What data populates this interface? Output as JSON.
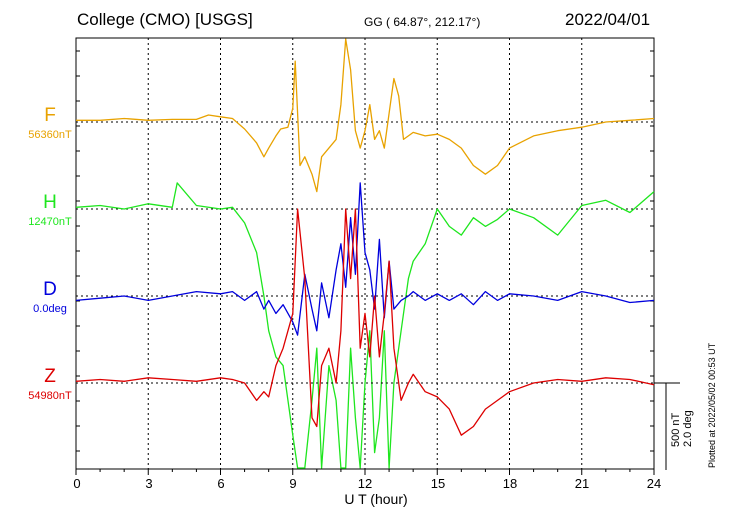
{
  "header": {
    "station": "College (CMO)  [USGS]",
    "coords": "GG ( 64.87°, 212.17°)",
    "date": "2022/04/01"
  },
  "side_note": "Plotted at 2022/05/02 00:53 UT",
  "scale_bar": {
    "line1": "500 nT",
    "line2": "2.0 deg"
  },
  "colors": {
    "F": "#e8a200",
    "H": "#1ee61e",
    "D": "#0000dd",
    "Z": "#dd0000"
  },
  "chart_data": {
    "type": "line",
    "xlabel": "U T (hour)",
    "xlim": [
      0,
      24
    ],
    "x_ticks": [
      0,
      3,
      6,
      9,
      12,
      15,
      18,
      21,
      24
    ],
    "x_tick_labels": [
      "0",
      "3",
      "6",
      "9",
      "12",
      "15",
      "18",
      "21",
      "24"
    ],
    "y_unit_per_division": "500 nT / 2.0 deg",
    "series": [
      {
        "name": "F",
        "baseline_label": "56360nT",
        "color": "#e8a200",
        "x": [
          0,
          1,
          2,
          3,
          4,
          5,
          5.5,
          6,
          6.5,
          7,
          7.5,
          7.8,
          8,
          8.3,
          8.5,
          8.8,
          9,
          9.1,
          9.3,
          9.5,
          9.8,
          10,
          10.2,
          10.5,
          10.8,
          11,
          11.2,
          11.4,
          11.6,
          11.8,
          12,
          12.2,
          12.4,
          12.6,
          12.8,
          13,
          13.2,
          13.4,
          13.6,
          13.8,
          14,
          14.5,
          15,
          15.5,
          16,
          16.5,
          17,
          17.5,
          18,
          19,
          20,
          21,
          22,
          23,
          24
        ],
        "y": [
          10,
          10,
          20,
          10,
          15,
          15,
          40,
          30,
          20,
          -40,
          -120,
          -200,
          -150,
          -80,
          -40,
          -30,
          80,
          350,
          -250,
          -200,
          -300,
          -400,
          -200,
          -150,
          -100,
          100,
          550,
          300,
          -50,
          -150,
          -50,
          100,
          -100,
          -50,
          -150,
          50,
          250,
          150,
          -100,
          -80,
          -60,
          -80,
          -70,
          -100,
          -150,
          -250,
          -300,
          -250,
          -150,
          -80,
          -50,
          -30,
          0,
          10,
          20
        ]
      },
      {
        "name": "H",
        "baseline_label": "12470nT",
        "color": "#1ee61e",
        "x": [
          0,
          1,
          2,
          3,
          4,
          4.2,
          5,
          6,
          6.5,
          7,
          7.5,
          7.8,
          8,
          8.3,
          8.6,
          9,
          9.2,
          9.5,
          9.8,
          10,
          10.2,
          10.5,
          10.8,
          11,
          11.2,
          11.4,
          11.6,
          11.8,
          12,
          12.2,
          12.4,
          12.6,
          12.8,
          13,
          13.2,
          13.5,
          13.8,
          14,
          14.5,
          15,
          15.5,
          16,
          16.5,
          17,
          17.5,
          18,
          19,
          20,
          21,
          22,
          23,
          24
        ],
        "y": [
          10,
          20,
          0,
          30,
          10,
          150,
          20,
          0,
          10,
          -80,
          -250,
          -500,
          -700,
          -850,
          -900,
          -1300,
          -1900,
          -1600,
          -1100,
          -800,
          -1500,
          -900,
          -1100,
          -2100,
          -1500,
          -800,
          -1200,
          -1600,
          -1000,
          -700,
          -1400,
          -1200,
          -700,
          -1500,
          -1000,
          -700,
          -400,
          -300,
          -200,
          0,
          -100,
          -150,
          -50,
          -100,
          -60,
          0,
          -50,
          -150,
          20,
          50,
          -20,
          100
        ]
      },
      {
        "name": "D",
        "baseline_label": "0.0deg",
        "color": "#0000dd",
        "x": [
          0,
          1,
          2,
          3,
          4,
          5,
          6,
          6.5,
          7,
          7.5,
          7.8,
          8,
          8.3,
          8.6,
          9,
          9.2,
          9.5,
          9.8,
          10,
          10.2,
          10.5,
          10.8,
          11,
          11.2,
          11.4,
          11.6,
          11.8,
          12,
          12.2,
          12.4,
          12.6,
          12.8,
          13,
          13.2,
          13.5,
          13.8,
          14,
          14.5,
          15,
          15.5,
          16,
          16.5,
          17,
          17.5,
          18,
          19,
          20,
          21,
          22,
          23,
          24
        ],
        "y": [
          -0.1,
          -0.05,
          0,
          -0.1,
          0,
          0.1,
          0.05,
          0.1,
          -0.1,
          0.1,
          -0.3,
          -0.1,
          -0.4,
          -0.2,
          -0.6,
          -0.9,
          0.5,
          -0.3,
          -0.8,
          0.3,
          -0.5,
          0.6,
          1.2,
          0.2,
          1.8,
          0.5,
          2.6,
          1.0,
          0.6,
          -0.3,
          1.3,
          -0.5,
          0.8,
          -0.3,
          -0.1,
          0,
          0.1,
          -0.1,
          0.05,
          -0.1,
          0.05,
          -0.2,
          0.1,
          -0.1,
          0.05,
          0,
          -0.1,
          0.1,
          0,
          -0.15,
          -0.1
        ]
      },
      {
        "name": "Z",
        "baseline_label": "54980nT",
        "color": "#dd0000",
        "x": [
          0,
          1,
          2,
          3,
          4,
          5,
          6,
          6.5,
          7,
          7.5,
          7.8,
          8,
          8.3,
          8.6,
          9,
          9.2,
          9.5,
          9.8,
          10,
          10.2,
          10.5,
          10.8,
          11,
          11.2,
          11.4,
          11.6,
          11.8,
          12,
          12.2,
          12.4,
          12.6,
          12.8,
          13,
          13.2,
          13.5,
          13.8,
          14,
          14.5,
          15,
          15.5,
          16,
          16.5,
          17,
          17.5,
          18,
          19,
          20,
          21,
          22,
          23,
          24
        ],
        "y": [
          10,
          20,
          10,
          30,
          20,
          10,
          30,
          20,
          0,
          -100,
          -50,
          -80,
          100,
          200,
          400,
          1000,
          600,
          -200,
          -250,
          100,
          200,
          0,
          300,
          1000,
          600,
          1000,
          200,
          400,
          150,
          500,
          150,
          400,
          700,
          200,
          -100,
          0,
          50,
          -50,
          -80,
          -150,
          -300,
          -250,
          -150,
          -100,
          -50,
          0,
          20,
          10,
          30,
          20,
          -10
        ]
      }
    ]
  }
}
